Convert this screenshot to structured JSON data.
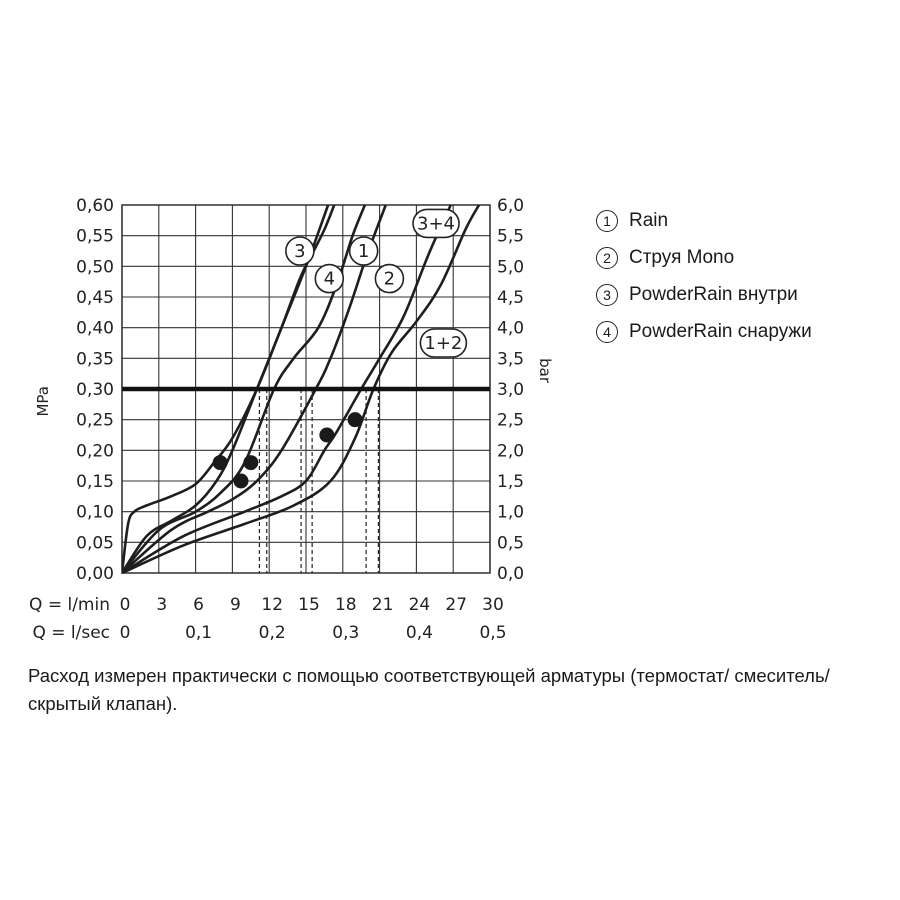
{
  "chart_data": {
    "type": "line",
    "x_axis_rows": [
      {
        "label": "Q = l/min",
        "ticks": [
          "0",
          "3",
          "6",
          "9",
          "12",
          "15",
          "18",
          "21",
          "24",
          "27",
          "30"
        ]
      },
      {
        "label": "Q = l/sec",
        "ticks": [
          "0",
          "0,1",
          "0,2",
          "0,3",
          "0,4",
          "0,5"
        ]
      }
    ],
    "y_left": {
      "label": "MPa",
      "ticks": [
        "0,00",
        "0,05",
        "0,10",
        "0,15",
        "0,20",
        "0,25",
        "0,30",
        "0,35",
        "0,40",
        "0,45",
        "0,50",
        "0,55",
        "0,60"
      ],
      "ylim": [
        0,
        0.6
      ]
    },
    "y_right": {
      "label": "bar",
      "ticks": [
        "0,0",
        "0,5",
        "1,0",
        "1,5",
        "2,0",
        "2,5",
        "3,0",
        "3,5",
        "4,0",
        "4,5",
        "5,0",
        "5,5",
        "6,0"
      ],
      "ylim": [
        0,
        6
      ]
    },
    "xlim": [
      0,
      30
    ],
    "grid": true,
    "reference_line": {
      "y": 0.3
    },
    "series": [
      {
        "name": "3",
        "x": [
          0,
          0.5,
          1,
          2,
          4,
          6,
          7.5,
          9,
          11,
          13,
          15,
          16.8
        ],
        "y": [
          0,
          0.08,
          0.1,
          0.11,
          0.125,
          0.145,
          0.18,
          0.22,
          0.3,
          0.4,
          0.5,
          0.6
        ]
      },
      {
        "name": "4",
        "x": [
          0,
          2,
          4,
          6,
          7.7,
          9,
          11,
          13,
          14.5,
          15.5,
          16.5,
          17.3
        ],
        "y": [
          0,
          0.06,
          0.085,
          0.11,
          0.15,
          0.2,
          0.3,
          0.4,
          0.48,
          0.52,
          0.56,
          0.6
        ]
      },
      {
        "name": "1",
        "x": [
          0,
          3,
          6,
          8,
          10,
          12.4,
          14,
          16,
          17.5,
          18.8,
          19.8
        ],
        "y": [
          0,
          0.07,
          0.1,
          0.13,
          0.18,
          0.3,
          0.35,
          0.4,
          0.47,
          0.55,
          0.6
        ]
      },
      {
        "name": "2",
        "x": [
          0,
          4,
          7,
          9,
          11,
          13,
          15.8,
          17,
          18.5,
          20,
          21.5
        ],
        "y": [
          0,
          0.07,
          0.1,
          0.12,
          0.15,
          0.2,
          0.3,
          0.35,
          0.43,
          0.52,
          0.6
        ]
      },
      {
        "name": "3+4",
        "x": [
          0,
          5,
          10,
          13,
          15,
          16.5,
          17.5,
          19.5,
          21,
          23,
          25,
          26.8
        ],
        "y": [
          0,
          0.06,
          0.1,
          0.125,
          0.15,
          0.2,
          0.23,
          0.3,
          0.35,
          0.42,
          0.52,
          0.6
        ]
      },
      {
        "name": "1+2",
        "x": [
          0,
          5,
          10,
          14,
          17,
          19,
          20.5,
          22,
          24,
          26,
          28,
          29.1
        ],
        "y": [
          0,
          0.045,
          0.08,
          0.11,
          0.15,
          0.22,
          0.3,
          0.36,
          0.41,
          0.47,
          0.56,
          0.6
        ]
      }
    ],
    "markers": [
      {
        "x": 8,
        "y": 0.18
      },
      {
        "x": 10.5,
        "y": 0.18
      },
      {
        "x": 9.7,
        "y": 0.15
      },
      {
        "x": 16.7,
        "y": 0.225
      },
      {
        "x": 19,
        "y": 0.25
      }
    ],
    "dashed_drops": [
      {
        "x": 11.2,
        "y": 0.3
      },
      {
        "x": 11.8,
        "y": 0.3
      },
      {
        "x": 14.6,
        "y": 0.3
      },
      {
        "x": 15.5,
        "y": 0.3
      },
      {
        "x": 19.9,
        "y": 0.3
      },
      {
        "x": 20.9,
        "y": 0.3
      }
    ],
    "curve_labels": [
      {
        "text": "3",
        "x": 14.5,
        "y": 0.525
      },
      {
        "text": "1",
        "x": 19.7,
        "y": 0.525
      },
      {
        "text": "4",
        "x": 16.9,
        "y": 0.48
      },
      {
        "text": "2",
        "x": 21.8,
        "y": 0.48
      },
      {
        "text": "3+4",
        "x": 25.6,
        "y": 0.57
      },
      {
        "text": "1+2",
        "x": 26.2,
        "y": 0.375
      }
    ]
  },
  "legend": [
    {
      "marker": "1",
      "text": "Rain"
    },
    {
      "marker": "2",
      "text": "Струя Mono"
    },
    {
      "marker": "3",
      "text": "PowderRain внутри"
    },
    {
      "marker": "4",
      "text": "PowderRain снаружи"
    }
  ],
  "note": "Расход измерен практически с помощью соответствующей арматуры (термостат/ смеситель/скрытый клапан)."
}
